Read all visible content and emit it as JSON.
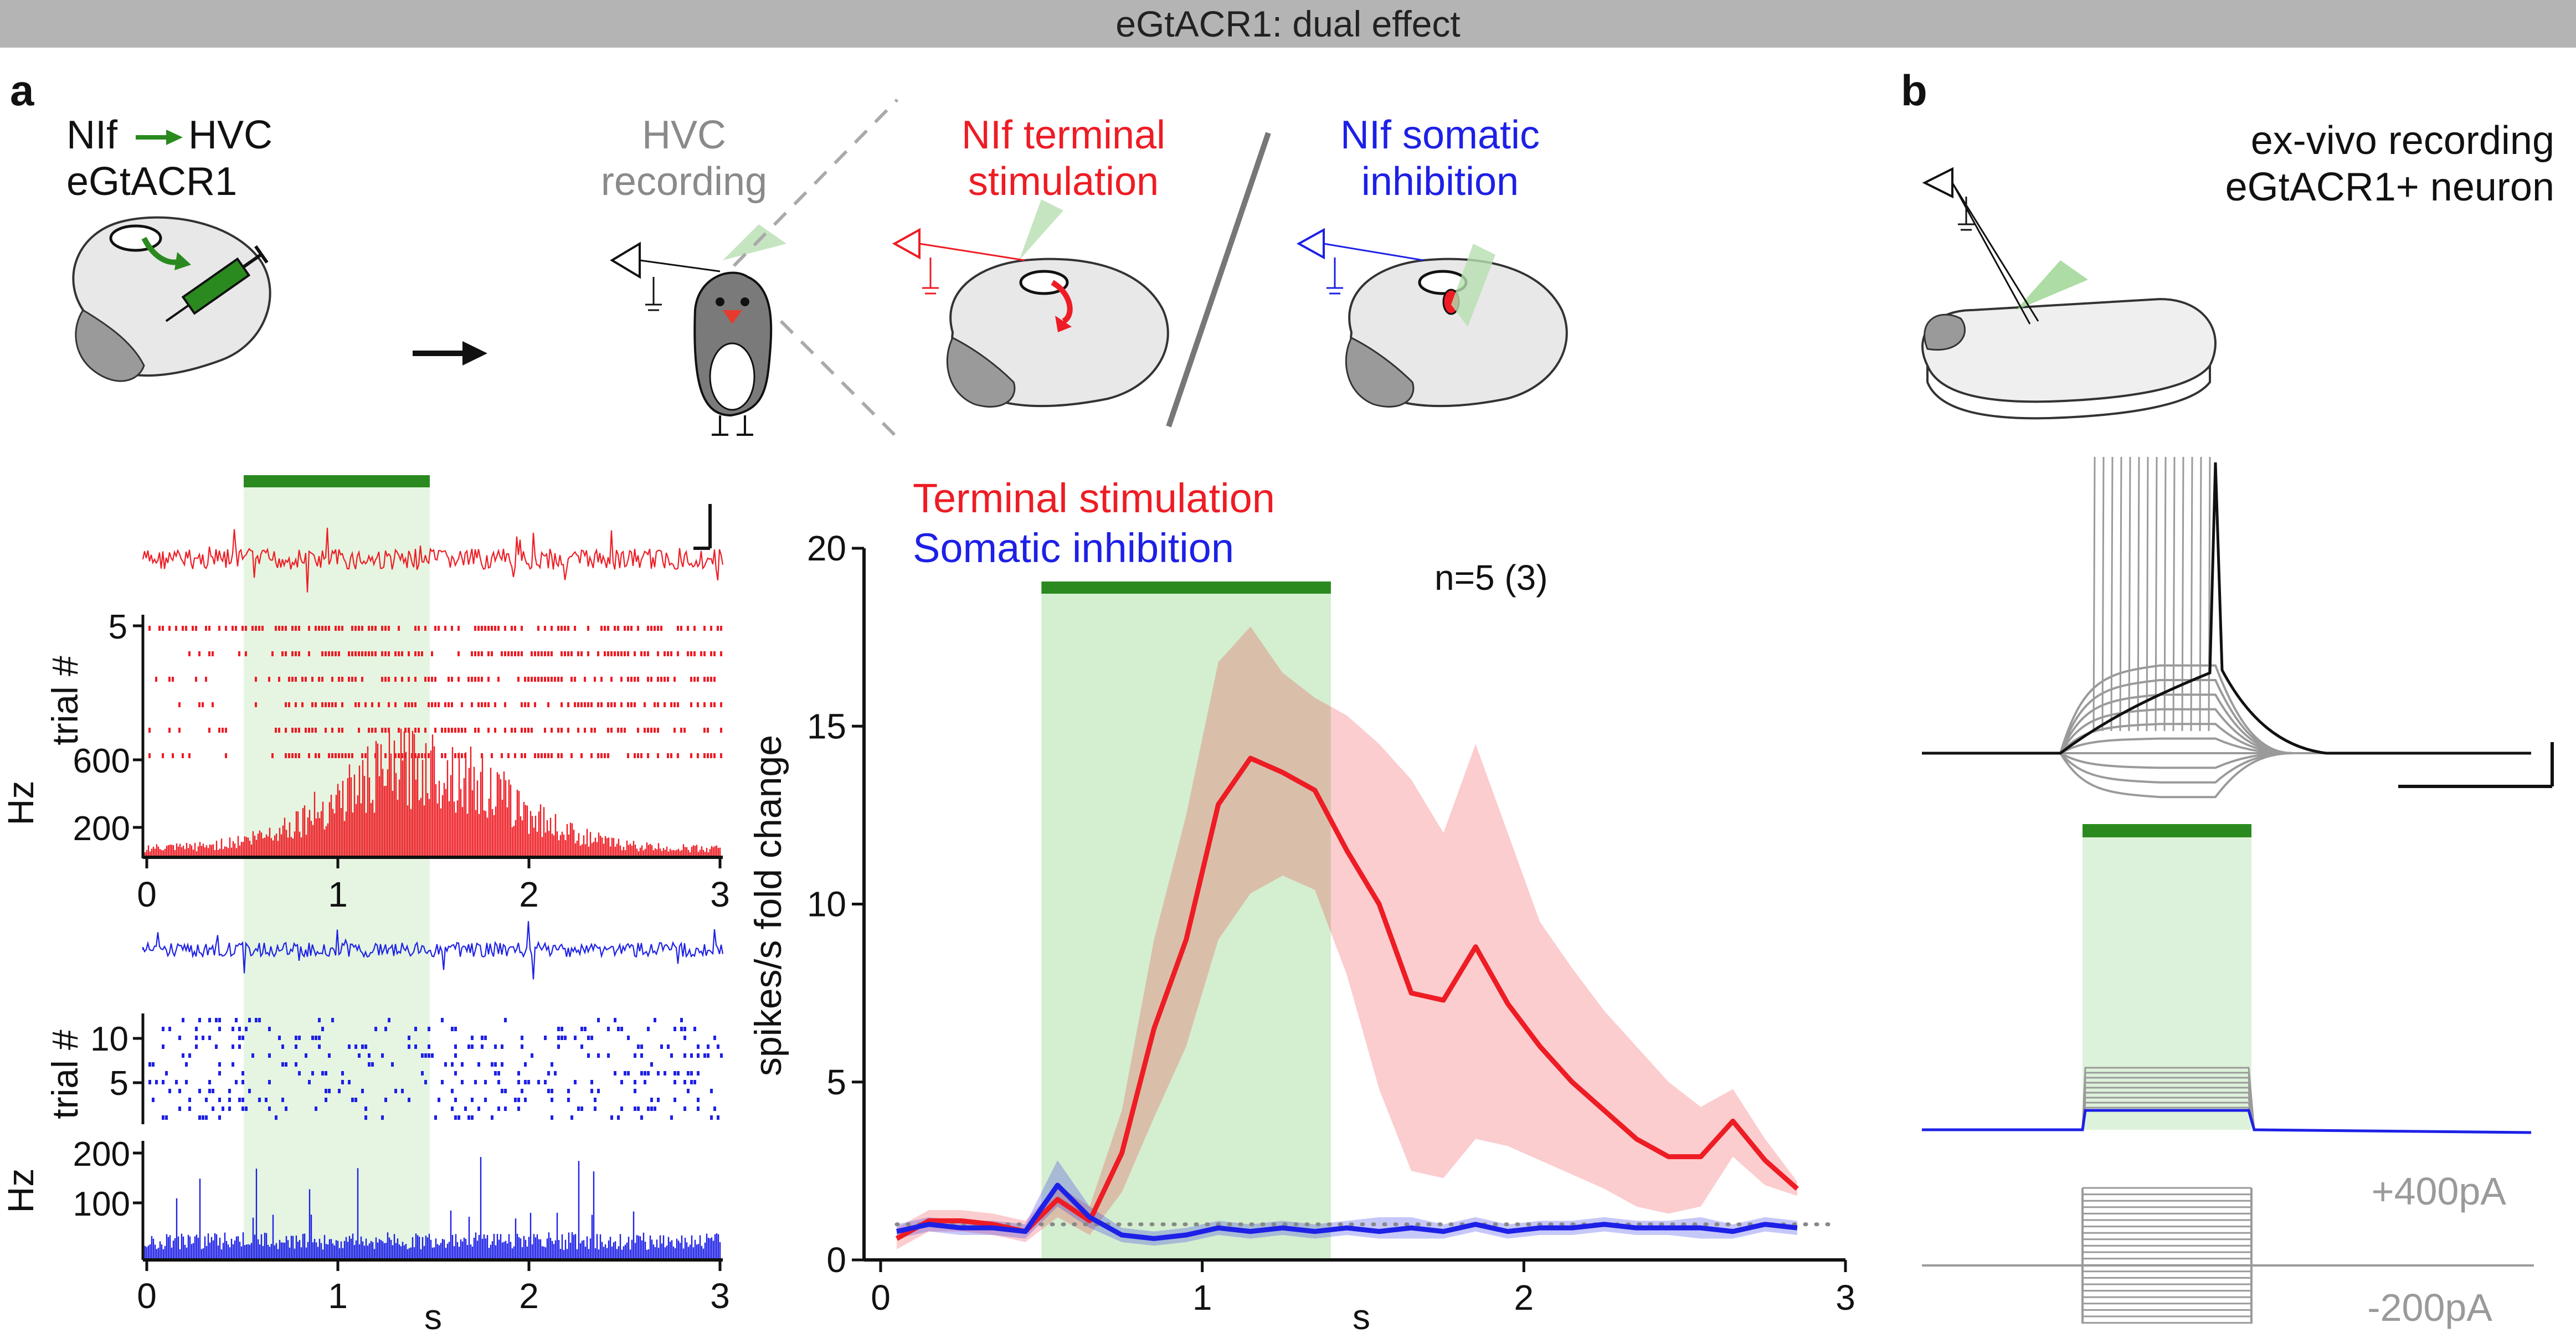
{
  "banner": {
    "title": "eGtACR1: dual effect"
  },
  "colors": {
    "red": "#ee1c24",
    "blue": "#1d20e6",
    "green": "#2a8a1f",
    "light_green": "#cfeccb",
    "gray": "#8a8a8a",
    "dark": "#111111"
  },
  "panel_a": {
    "label": "a",
    "schematic": {
      "injection_from": "NIf",
      "injection_to": "HVC",
      "injection_virus": "eGtACR1",
      "recording_title_1": "HVC",
      "recording_title_2": "recording",
      "terminal_title_1": "NIf terminal",
      "terminal_title_2": "stimulation",
      "somatic_title_1": "NIf somatic",
      "somatic_title_2": "inhibition"
    },
    "raster_red": {
      "ylabel_trial": "trial #",
      "trial_ticks": [
        "5"
      ],
      "ylabel_rate": "Hz",
      "rate_ticks": [
        "600",
        "200"
      ]
    },
    "raster_blue": {
      "ylabel_trial": "trial #",
      "trial_ticks": [
        "10",
        "5"
      ],
      "ylabel_rate": "Hz",
      "rate_ticks": [
        "200",
        "100"
      ]
    },
    "time_axis": {
      "ticks": [
        "0",
        "1",
        "2",
        "3"
      ],
      "label": "s"
    }
  },
  "chart_data": {
    "type": "line",
    "title": "",
    "legend": [
      "Terminal stimulation",
      "Somatic inhibition"
    ],
    "legend_position": "top-left",
    "annotation": "n=5 (3)",
    "xlabel": "s",
    "ylabel": "spikes/s fold change",
    "xlim": [
      0,
      3
    ],
    "ylim": [
      0,
      20
    ],
    "xticks": [
      0,
      1,
      2,
      3
    ],
    "yticks": [
      0,
      5,
      10,
      15,
      20
    ],
    "stimulus_window": [
      0.5,
      1.4
    ],
    "baseline": 1,
    "series": [
      {
        "name": "Terminal stimulation",
        "color": "#ee1c24",
        "x": [
          0.05,
          0.15,
          0.25,
          0.35,
          0.45,
          0.55,
          0.65,
          0.75,
          0.85,
          0.95,
          1.05,
          1.15,
          1.25,
          1.35,
          1.45,
          1.55,
          1.65,
          1.75,
          1.85,
          1.95,
          2.05,
          2.15,
          2.25,
          2.35,
          2.45,
          2.55,
          2.65,
          2.75,
          2.85
        ],
        "y": [
          0.6,
          1.1,
          1.1,
          1.0,
          0.8,
          1.7,
          1.1,
          3.0,
          6.5,
          9.0,
          12.8,
          14.1,
          13.7,
          13.2,
          11.5,
          10.0,
          7.5,
          7.3,
          8.8,
          7.2,
          6.0,
          5.0,
          4.2,
          3.4,
          2.9,
          2.9,
          3.9,
          2.8,
          2.0
        ],
        "upper": [
          0.9,
          1.4,
          1.4,
          1.3,
          1.1,
          2.1,
          1.5,
          4.2,
          9.0,
          12.5,
          16.8,
          17.8,
          16.5,
          15.8,
          15.3,
          14.5,
          13.5,
          12.0,
          14.5,
          12.0,
          9.5,
          8.2,
          7.0,
          6.0,
          5.0,
          4.3,
          4.8,
          3.4,
          2.2
        ],
        "lower": [
          0.3,
          0.8,
          0.8,
          0.7,
          0.5,
          1.2,
          0.7,
          1.9,
          4.0,
          6.0,
          9.0,
          10.3,
          10.8,
          10.4,
          8.0,
          4.8,
          2.5,
          2.3,
          3.4,
          3.2,
          2.8,
          2.4,
          2.0,
          1.5,
          1.3,
          1.5,
          2.9,
          2.1,
          1.8
        ]
      },
      {
        "name": "Somatic inhibition",
        "color": "#1d20e6",
        "x": [
          0.05,
          0.15,
          0.25,
          0.35,
          0.45,
          0.55,
          0.65,
          0.75,
          0.85,
          0.95,
          1.05,
          1.15,
          1.25,
          1.35,
          1.45,
          1.55,
          1.65,
          1.75,
          1.85,
          1.95,
          2.05,
          2.15,
          2.25,
          2.35,
          2.45,
          2.55,
          2.65,
          2.75,
          2.85
        ],
        "y": [
          0.8,
          1.0,
          0.9,
          0.9,
          0.8,
          2.1,
          1.2,
          0.7,
          0.6,
          0.7,
          0.9,
          0.8,
          0.9,
          0.8,
          0.9,
          0.8,
          0.9,
          0.8,
          1.0,
          0.8,
          0.9,
          0.9,
          1.0,
          0.9,
          0.9,
          0.9,
          0.8,
          1.0,
          0.9
        ],
        "upper": [
          1.0,
          1.2,
          1.1,
          1.1,
          1.0,
          2.8,
          1.5,
          0.9,
          0.8,
          0.9,
          1.1,
          1.0,
          1.1,
          1.0,
          1.1,
          1.2,
          1.2,
          1.0,
          1.2,
          1.0,
          1.1,
          1.1,
          1.2,
          1.1,
          1.1,
          1.2,
          1.0,
          1.2,
          1.1
        ],
        "lower": [
          0.6,
          0.8,
          0.7,
          0.7,
          0.6,
          1.5,
          0.9,
          0.5,
          0.4,
          0.5,
          0.7,
          0.6,
          0.7,
          0.6,
          0.7,
          0.6,
          0.6,
          0.6,
          0.8,
          0.6,
          0.7,
          0.7,
          0.8,
          0.7,
          0.7,
          0.6,
          0.6,
          0.8,
          0.7
        ]
      }
    ]
  },
  "panel_b": {
    "label": "b",
    "title_1": "ex-vivo recording",
    "title_2": "eGtACR1+ neuron",
    "step_high": "+400pA",
    "step_low": "-200pA"
  }
}
